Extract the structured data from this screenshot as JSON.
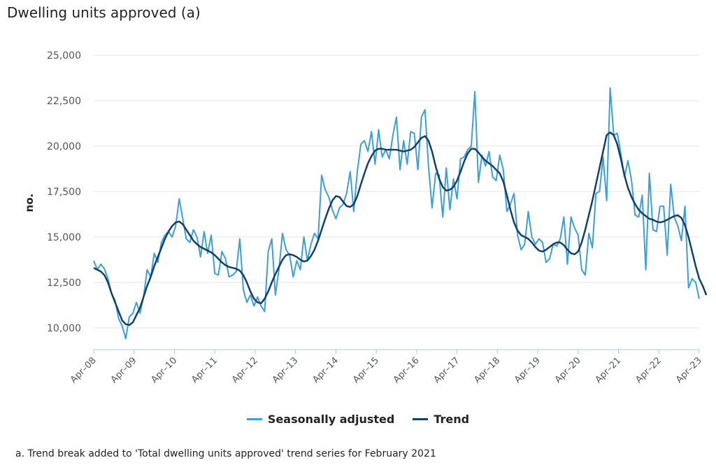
{
  "chart_data": {
    "type": "line",
    "title": "Dwelling units approved (a)",
    "ylabel": "no.",
    "xlabel": "",
    "ylim": [
      8800,
      25500
    ],
    "yticks": [
      10000,
      12500,
      15000,
      17500,
      20000,
      22500,
      25000
    ],
    "ytick_labels": [
      "10,000",
      "12,500",
      "15,000",
      "17,500",
      "20,000",
      "22,500",
      "25,000"
    ],
    "xtick_labels": [
      "Apr–08",
      "Apr–09",
      "Apr–10",
      "Apr–11",
      "Apr–12",
      "Apr–13",
      "Apr–14",
      "Apr–15",
      "Apr–16",
      "Apr–17",
      "Apr–18",
      "Apr–19",
      "Apr–20",
      "Apr–21",
      "Apr–22",
      "Apr–23"
    ],
    "x_start": "Apr-2008",
    "x_end": "Apr-2023",
    "frequency": "monthly",
    "grid": true,
    "legend_position": "bottom",
    "series": [
      {
        "name": "Seasonally adjusted",
        "color": "#3c9fd6",
        "values": [
          13700,
          13200,
          13500,
          13250,
          12700,
          11900,
          11500,
          10500,
          10100,
          9400,
          10600,
          10800,
          11400,
          10800,
          11700,
          13200,
          12800,
          14100,
          13600,
          14700,
          15100,
          15300,
          15000,
          15600,
          17100,
          16000,
          14900,
          14700,
          15400,
          15000,
          13900,
          15300,
          14100,
          15100,
          13000,
          12900,
          14200,
          13800,
          12800,
          12900,
          13100,
          14900,
          12100,
          11400,
          11800,
          11200,
          11700,
          11200,
          10900,
          14200,
          14900,
          11800,
          13200,
          15200,
          14300,
          14000,
          12800,
          13700,
          13200,
          15000,
          13700,
          14600,
          15200,
          14900,
          18400,
          17600,
          17200,
          16500,
          16000,
          16600,
          16800,
          17400,
          18600,
          16400,
          18600,
          20100,
          20300,
          19700,
          20800,
          19000,
          20900,
          19400,
          19800,
          19300,
          20600,
          21600,
          18700,
          20300,
          19000,
          20800,
          20700,
          18700,
          21600,
          22000,
          18900,
          16600,
          18500,
          18400,
          16100,
          18800,
          16500,
          18200,
          17100,
          19300,
          19400,
          19800,
          20000,
          23000,
          18000,
          19500,
          18900,
          19700,
          18300,
          18100,
          19500,
          18700,
          16400,
          16800,
          17400,
          15100,
          14300,
          14600,
          16400,
          15000,
          14600,
          14900,
          14700,
          13600,
          13800,
          14600,
          14500,
          14900,
          16100,
          13500,
          16100,
          15500,
          15100,
          13200,
          12900,
          15200,
          14400,
          17400,
          17500,
          19400,
          17000,
          23200,
          20600,
          20700,
          19600,
          18300,
          19200,
          18100,
          16200,
          16100,
          17300,
          13200,
          18500,
          15400,
          15300,
          16700,
          16700,
          14000,
          17900,
          16100,
          15600,
          14800,
          16700,
          12200,
          12700,
          12500,
          11600
        ]
      },
      {
        "name": "Trend",
        "color": "#13406b",
        "values": [
          13300,
          13200,
          13100,
          12900,
          12500,
          11900,
          11400,
          10900,
          10400,
          10200,
          10150,
          10300,
          10700,
          11100,
          11700,
          12300,
          12800,
          13400,
          13900,
          14400,
          14900,
          15300,
          15600,
          15800,
          15850,
          15700,
          15400,
          15100,
          14800,
          14600,
          14450,
          14350,
          14250,
          14150,
          14000,
          13800,
          13600,
          13450,
          13350,
          13300,
          13250,
          13150,
          12900,
          12500,
          12000,
          11600,
          11400,
          11350,
          11600,
          12000,
          12500,
          12950,
          13350,
          13750,
          14000,
          14050,
          14000,
          13900,
          13750,
          13650,
          13700,
          13950,
          14300,
          14800,
          15400,
          16000,
          16550,
          17000,
          17250,
          17200,
          16950,
          16700,
          16650,
          16800,
          17250,
          17900,
          18500,
          19050,
          19450,
          19750,
          19850,
          19850,
          19800,
          19800,
          19800,
          19800,
          19750,
          19700,
          19750,
          19800,
          19950,
          20200,
          20450,
          20550,
          20300,
          19700,
          18900,
          18200,
          17750,
          17550,
          17600,
          17750,
          18100,
          18600,
          19150,
          19600,
          19850,
          19850,
          19650,
          19400,
          19200,
          19050,
          18900,
          18700,
          18500,
          18050,
          17300,
          16500,
          15800,
          15350,
          15100,
          15000,
          14900,
          14700,
          14450,
          14250,
          14200,
          14300,
          14450,
          14600,
          14700,
          14700,
          14550,
          14300,
          14100,
          14050,
          14200,
          14700,
          15400,
          16200,
          17000,
          17900,
          18800,
          19700,
          20600,
          20750,
          20600,
          20100,
          19300,
          18400,
          17700,
          17200,
          16800,
          16500,
          16300,
          16150,
          16000,
          15950,
          15850,
          15800,
          15850,
          15950,
          16050,
          16150,
          16200,
          16050,
          15650,
          15000,
          14200,
          13400,
          12700,
          12300,
          11800
        ]
      }
    ]
  },
  "legend": {
    "seasonally_adjusted": "Seasonally adjusted",
    "trend": "Trend"
  },
  "footnote": "a. Trend break added to 'Total dwelling units approved' trend series for February 2021"
}
